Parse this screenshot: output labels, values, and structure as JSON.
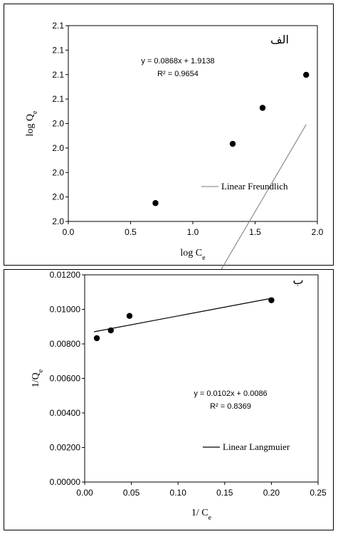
{
  "chart_data": [
    {
      "type": "scatter",
      "panel_tag": "الف",
      "xlabel_main": "log C",
      "xlabel_sub": "e",
      "ylabel_main": "log Q",
      "ylabel_sub": "e",
      "xlim": [
        0.0,
        2.0
      ],
      "ylim": [
        2.04,
        2.12
      ],
      "x_ticks": [
        0.0,
        0.5,
        1.0,
        1.5,
        2.0
      ],
      "x_tick_labels": [
        "0.0",
        "0.5",
        "1.0",
        "1.5",
        "2.0"
      ],
      "y_ticks": [
        2.04,
        2.05,
        2.06,
        2.07,
        2.08,
        2.09,
        2.1,
        2.11,
        2.12
      ],
      "y_tick_labels": [
        "2.0",
        "2.0",
        "2.0",
        "2.0",
        "2.0",
        "2.1",
        "2.1",
        "2.1",
        "2.1"
      ],
      "series": [
        {
          "name": "Linear Freundlich",
          "x": [
            0.7,
            1.32,
            1.56,
            1.91
          ],
          "y": [
            2.0475,
            2.0717,
            2.0864,
            2.0999
          ]
        }
      ],
      "trendline": {
        "slope": 0.0868,
        "intercept": 1.9138,
        "x_range": [
          0.7,
          1.91
        ]
      },
      "equation": "y = 0.0868x + 1.9138",
      "r_squared": "R² = 0.9654",
      "legend": "Linear Freundlich",
      "grid": false
    },
    {
      "type": "scatter",
      "panel_tag": "ب",
      "xlabel_main": "1/ C",
      "xlabel_sub": "e",
      "ylabel_main": "1/Q",
      "ylabel_sub": "e",
      "xlim": [
        0.0,
        0.25
      ],
      "ylim": [
        0.0,
        0.012
      ],
      "x_ticks": [
        0.0,
        0.05,
        0.1,
        0.15,
        0.2,
        0.25
      ],
      "x_tick_labels": [
        "0.00",
        "0.05",
        "0.10",
        "0.15",
        "0.20",
        "0.25"
      ],
      "y_ticks": [
        0.0,
        0.002,
        0.004,
        0.006,
        0.008,
        0.01,
        0.012
      ],
      "y_tick_labels": [
        "0.00000",
        "0.00200",
        "0.00400",
        "0.00600",
        "0.00800",
        "0.01000",
        "0.01200"
      ],
      "series": [
        {
          "name": "Linear Langmuier",
          "x": [
            0.013,
            0.028,
            0.048,
            0.2
          ],
          "y": [
            0.00833,
            0.00878,
            0.00962,
            0.01053
          ]
        }
      ],
      "trendline": {
        "slope": 0.0102,
        "intercept": 0.0086,
        "x_range": [
          0.01,
          0.2
        ]
      },
      "equation": "y = 0.0102x + 0.0086",
      "r_squared": "R² = 0.8369",
      "legend": "Linear Langmuier",
      "grid": false
    }
  ]
}
